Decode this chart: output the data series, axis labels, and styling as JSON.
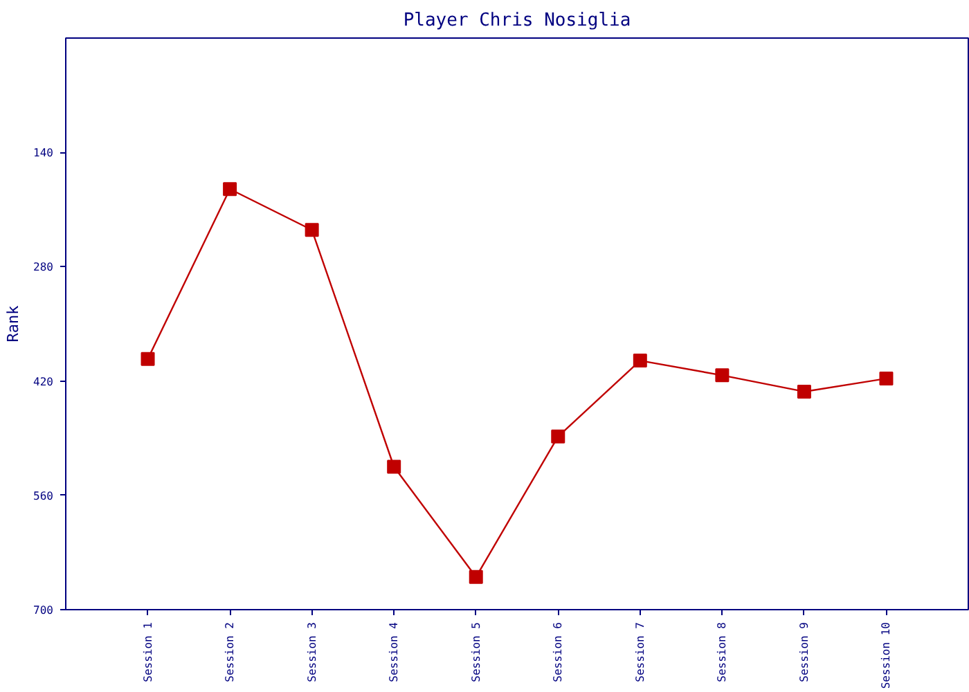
{
  "chart_data": {
    "type": "line",
    "title": "Player Chris Nosiglia",
    "ylabel": "Rank",
    "categories": [
      "Session 1",
      "Session 2",
      "Session 3",
      "Session 4",
      "Session 5",
      "Session 6",
      "Session 7",
      "Session 8",
      "Session 9",
      "Session 10"
    ],
    "series": [
      {
        "color": "#c00000",
        "values": [
          393,
          185,
          235,
          525,
          660,
          488,
          395,
          413,
          433,
          417
        ]
      }
    ],
    "ylim": [
      700,
      0
    ],
    "yticks": [
      140,
      280,
      420,
      560,
      700
    ],
    "marker": "square",
    "line_style": "solid"
  }
}
